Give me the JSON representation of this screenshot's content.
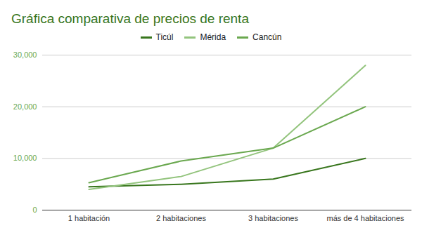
{
  "chart_data": {
    "type": "line",
    "title": "Gráfica comparativa de precios de renta",
    "categories": [
      "1 habitación",
      "2 habitaciones",
      "3 habitaciones",
      "más de 4 habitaciones"
    ],
    "series": [
      {
        "name": "Ticúl",
        "color": "#38761d",
        "values": [
          4500,
          5000,
          6000,
          10000
        ]
      },
      {
        "name": "Mérida",
        "color": "#93c47d",
        "values": [
          4000,
          6500,
          12000,
          28000
        ]
      },
      {
        "name": "Cancún",
        "color": "#6aa84f",
        "values": [
          5300,
          9500,
          12000,
          20000
        ]
      }
    ],
    "ylim": [
      0,
      30000
    ],
    "yticks": [
      0,
      10000,
      20000,
      30000
    ],
    "grid": true,
    "legend": "top"
  }
}
